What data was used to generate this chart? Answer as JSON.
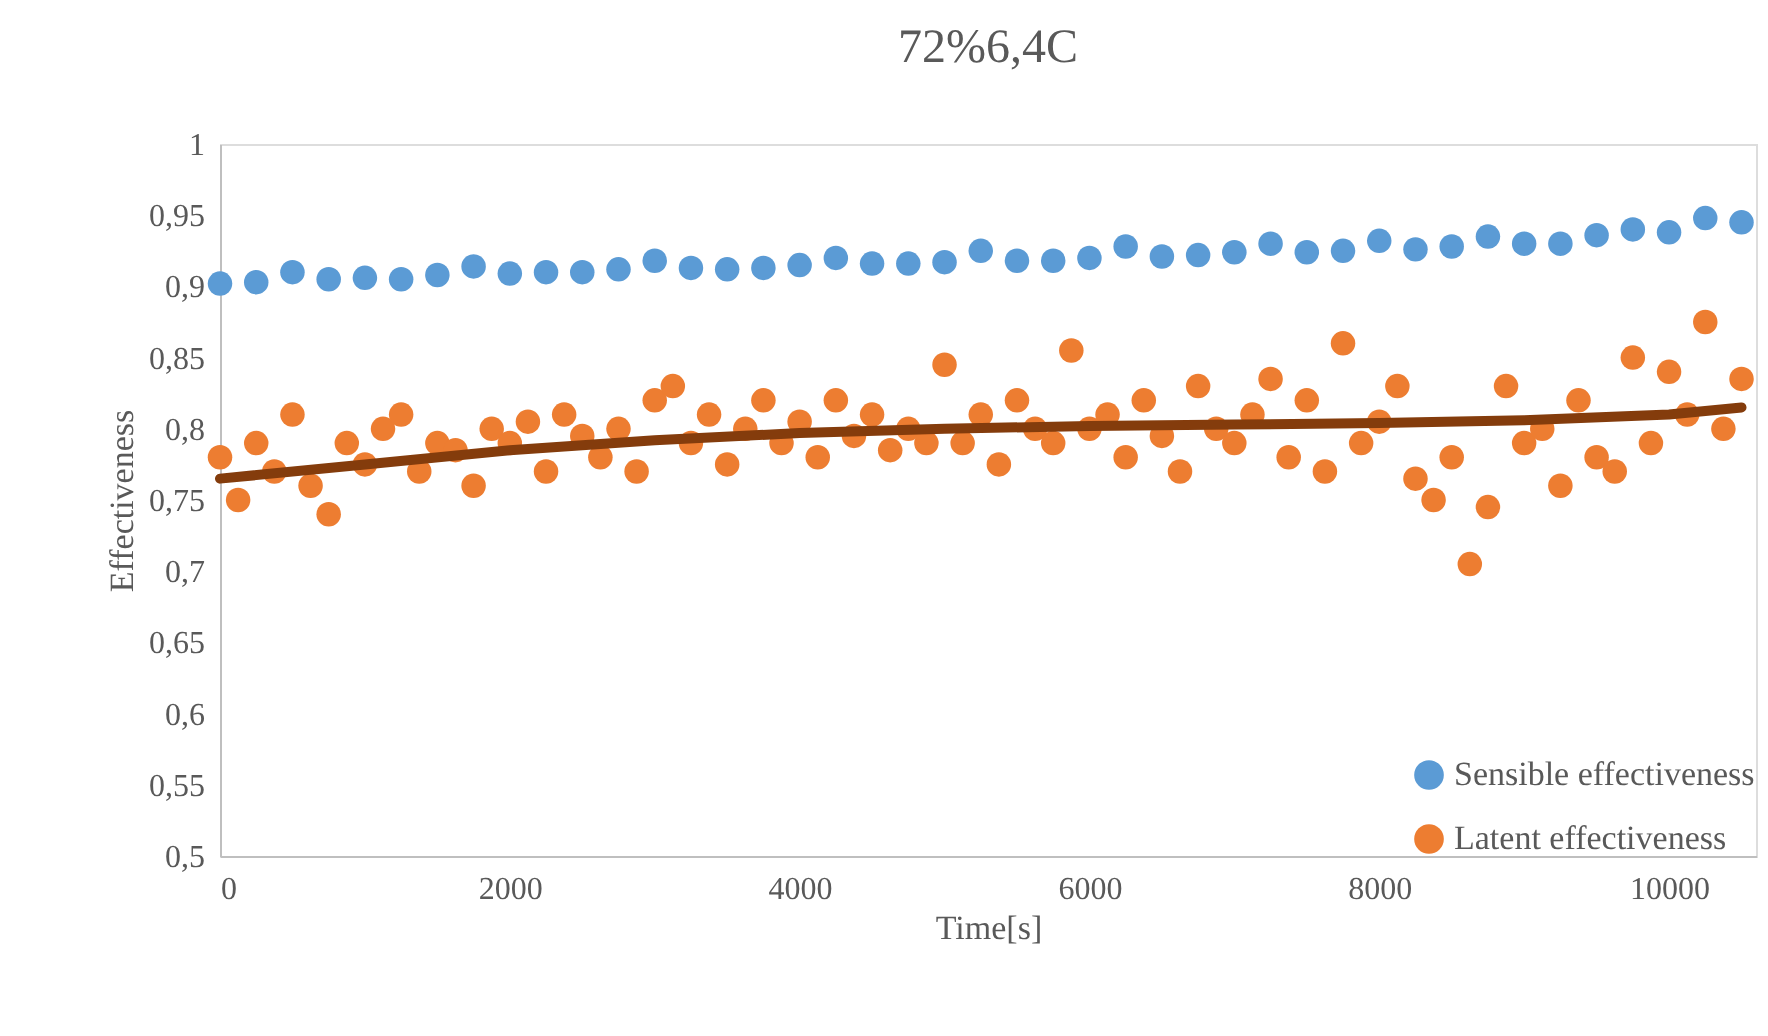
{
  "chart_data": {
    "type": "scatter",
    "title": "72%6,4C",
    "xlabel": "Time[s]",
    "ylabel": "Effectiveness",
    "xlim": [
      0,
      10600
    ],
    "xticks": [
      0,
      2000,
      4000,
      6000,
      8000,
      10000
    ],
    "ylim": [
      0.5,
      1
    ],
    "yticks": [
      {
        "value": 0.5,
        "label": "0,5"
      },
      {
        "value": 0.55,
        "label": "0,55"
      },
      {
        "value": 0.6,
        "label": "0,6"
      },
      {
        "value": 0.65,
        "label": "0,65"
      },
      {
        "value": 0.7,
        "label": "0,7"
      },
      {
        "value": 0.75,
        "label": "0,75"
      },
      {
        "value": 0.8,
        "label": "0,8"
      },
      {
        "value": 0.85,
        "label": "0,85"
      },
      {
        "value": 0.9,
        "label": "0,9"
      },
      {
        "value": 0.95,
        "label": "0,95"
      },
      {
        "value": 1,
        "label": "1"
      }
    ],
    "grid": false,
    "legend": "bottom right",
    "marker": "circle",
    "series": [
      {
        "name": "Sensible effectiveness",
        "color": "#5b9bd5",
        "x": [
          0,
          250,
          500,
          750,
          1000,
          1250,
          1500,
          1750,
          2000,
          2250,
          2500,
          2750,
          3000,
          3250,
          3500,
          3750,
          4000,
          4250,
          4500,
          4750,
          5000,
          5250,
          5500,
          5750,
          6000,
          6250,
          6500,
          6750,
          7000,
          7250,
          7500,
          7750,
          8000,
          8250,
          8500,
          8750,
          9000,
          9250,
          9500,
          9750,
          10000,
          10250,
          10500
        ],
        "values": [
          0.902,
          0.903,
          0.91,
          0.905,
          0.906,
          0.905,
          0.908,
          0.914,
          0.909,
          0.91,
          0.91,
          0.912,
          0.918,
          0.913,
          0.912,
          0.913,
          0.915,
          0.92,
          0.916,
          0.916,
          0.917,
          0.925,
          0.918,
          0.918,
          0.92,
          0.928,
          0.921,
          0.922,
          0.924,
          0.93,
          0.924,
          0.925,
          0.932,
          0.926,
          0.928,
          0.935,
          0.93,
          0.93,
          0.936,
          0.94,
          0.938,
          0.948,
          0.945
        ]
      },
      {
        "name": "Latent effectiveness",
        "color": "#ed7d31",
        "x": [
          0,
          125,
          250,
          375,
          500,
          625,
          750,
          875,
          1000,
          1125,
          1250,
          1375,
          1500,
          1625,
          1750,
          1875,
          2000,
          2125,
          2250,
          2375,
          2500,
          2625,
          2750,
          2875,
          3000,
          3125,
          3250,
          3375,
          3500,
          3625,
          3750,
          3875,
          4000,
          4125,
          4250,
          4375,
          4500,
          4625,
          4750,
          4875,
          5000,
          5125,
          5250,
          5375,
          5500,
          5625,
          5750,
          5875,
          6000,
          6125,
          6250,
          6375,
          6500,
          6625,
          6750,
          6875,
          7000,
          7125,
          7250,
          7375,
          7500,
          7625,
          7750,
          7875,
          8000,
          8125,
          8250,
          8375,
          8500,
          8625,
          8750,
          8875,
          9000,
          9125,
          9250,
          9375,
          9500,
          9625,
          9750,
          9875,
          10000,
          10125,
          10250,
          10375,
          10500
        ],
        "values": [
          0.78,
          0.75,
          0.79,
          0.77,
          0.81,
          0.76,
          0.74,
          0.79,
          0.775,
          0.8,
          0.81,
          0.77,
          0.79,
          0.785,
          0.76,
          0.8,
          0.79,
          0.805,
          0.77,
          0.81,
          0.795,
          0.78,
          0.8,
          0.77,
          0.82,
          0.83,
          0.79,
          0.81,
          0.775,
          0.8,
          0.82,
          0.79,
          0.805,
          0.78,
          0.82,
          0.795,
          0.81,
          0.785,
          0.8,
          0.79,
          0.845,
          0.79,
          0.81,
          0.775,
          0.82,
          0.8,
          0.79,
          0.855,
          0.8,
          0.81,
          0.78,
          0.82,
          0.795,
          0.77,
          0.83,
          0.8,
          0.79,
          0.81,
          0.835,
          0.78,
          0.82,
          0.77,
          0.86,
          0.79,
          0.805,
          0.83,
          0.765,
          0.75,
          0.78,
          0.705,
          0.745,
          0.83,
          0.79,
          0.8,
          0.76,
          0.82,
          0.78,
          0.77,
          0.85,
          0.79,
          0.84,
          0.81,
          0.875,
          0.8,
          0.835
        ]
      },
      {
        "type": "line",
        "marker": "none",
        "color": "#843c0c",
        "x": [
          0,
          1000,
          2000,
          3000,
          4000,
          5000,
          6000,
          7000,
          8000,
          9000,
          10000,
          10500
        ],
        "values": [
          0.765,
          0.775,
          0.785,
          0.792,
          0.797,
          0.8,
          0.802,
          0.803,
          0.804,
          0.806,
          0.81,
          0.815
        ]
      }
    ]
  }
}
